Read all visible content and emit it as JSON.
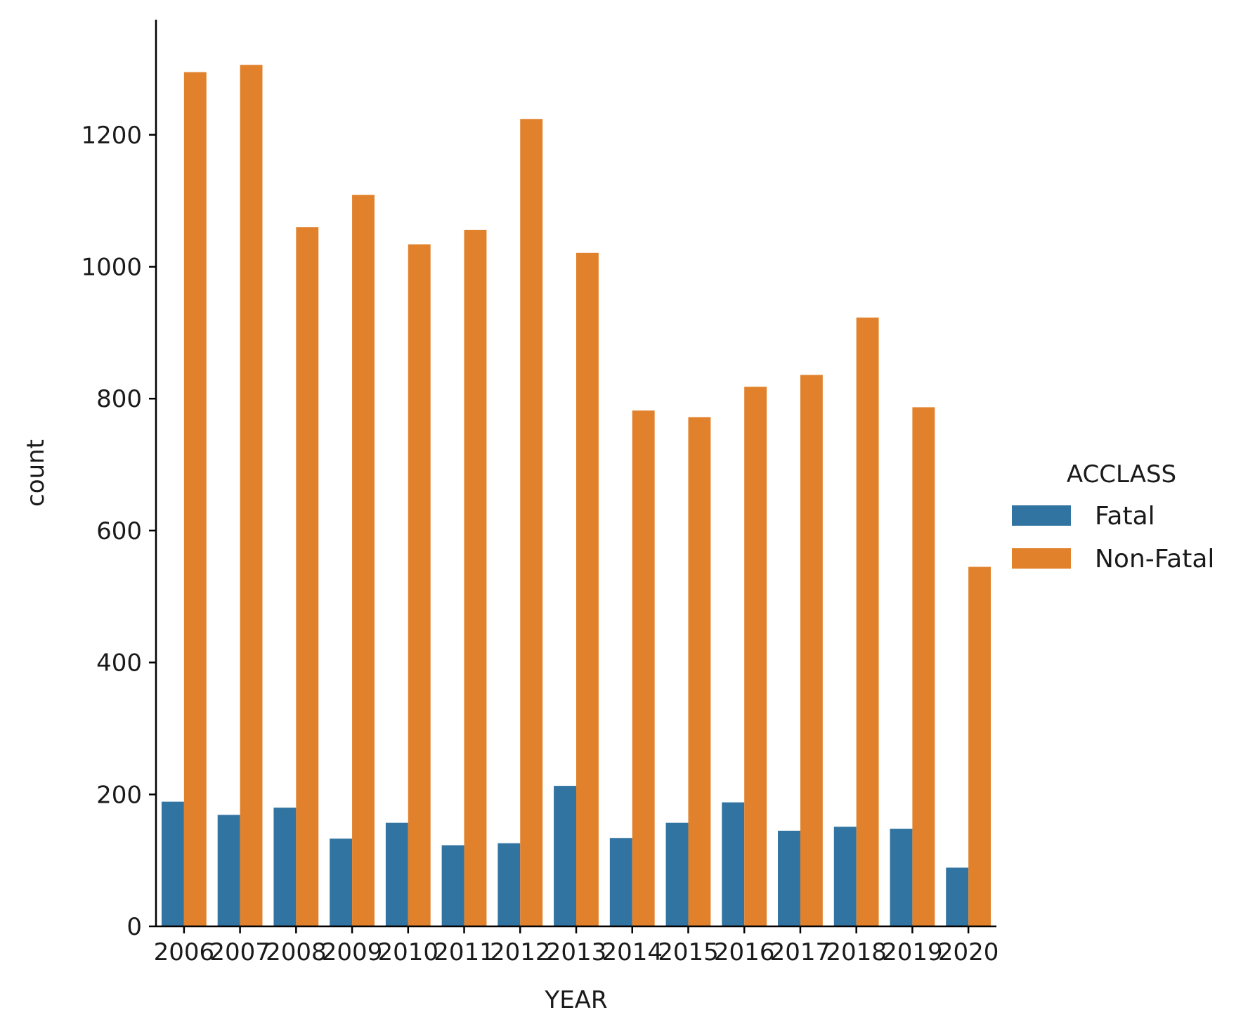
{
  "chart_data": {
    "type": "bar",
    "title": "",
    "xlabel": "YEAR",
    "ylabel": "count",
    "categories": [
      "2006",
      "2007",
      "2008",
      "2009",
      "2010",
      "2011",
      "2012",
      "2013",
      "2014",
      "2015",
      "2016",
      "2017",
      "2018",
      "2019",
      "2020"
    ],
    "series": [
      {
        "name": "Fatal",
        "color": "#3274a1",
        "values": [
          189,
          169,
          180,
          133,
          157,
          123,
          126,
          213,
          134,
          157,
          188,
          145,
          151,
          148,
          89
        ]
      },
      {
        "name": "Non-Fatal",
        "color": "#e1812c",
        "values": [
          1295,
          1306,
          1060,
          1109,
          1034,
          1056,
          1224,
          1021,
          782,
          772,
          818,
          836,
          923,
          787,
          545
        ]
      }
    ],
    "ylim": [
      0,
      1375
    ],
    "yticks": [
      0,
      200,
      400,
      600,
      800,
      1000,
      1200
    ],
    "grid": false,
    "legend": {
      "title": "ACCLASS",
      "placement": "right-outside"
    }
  }
}
